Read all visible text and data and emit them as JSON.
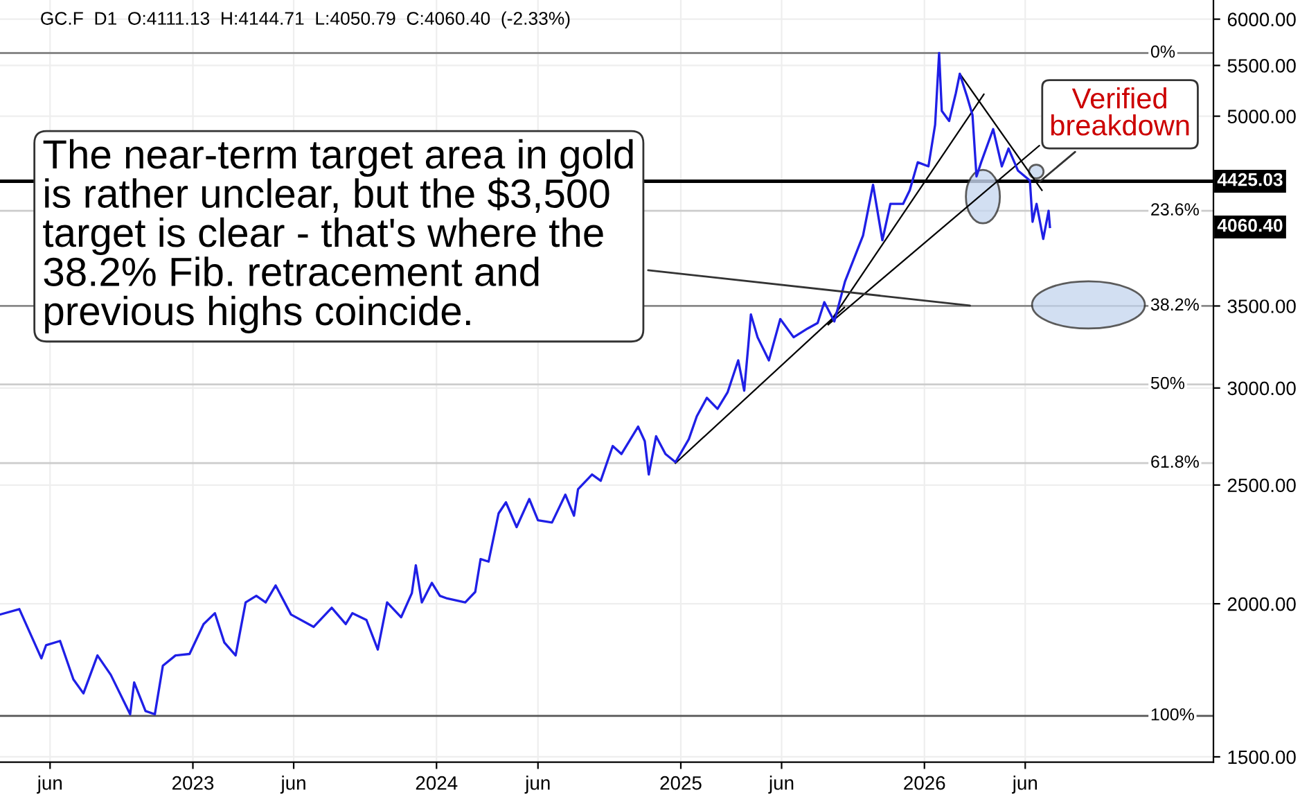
{
  "chart_data": {
    "type": "line",
    "title": "GC.F  D1  O:4111.13  H:4144.71  L:4050.79  C:4060.40  (-2.33%)",
    "log": true,
    "grid": true,
    "marker": "none",
    "line_style": "solid",
    "xlim": [
      "2022-03-18",
      "2027-03-10"
    ],
    "xticks": [
      {
        "value": "2022-06-01",
        "label": "jun"
      },
      {
        "value": "2023-01-01",
        "label": "2023"
      },
      {
        "value": "2023-06-01",
        "label": "jun"
      },
      {
        "value": "2024-01-01",
        "label": "2024"
      },
      {
        "value": "2024-06-01",
        "label": "jun"
      },
      {
        "value": "2025-01-01",
        "label": "2025"
      },
      {
        "value": "2025-06-01",
        "label": "jun"
      },
      {
        "value": "2026-01-01",
        "label": "2026"
      },
      {
        "value": "2026-06-01",
        "label": "jun"
      }
    ],
    "ylim": [
      1485,
      6220
    ],
    "yticks": [
      {
        "value": 1500,
        "label": "1500.00"
      },
      {
        "value": 2000,
        "label": "2000.00"
      },
      {
        "value": 2500,
        "label": "2500.00"
      },
      {
        "value": 3000,
        "label": "3000.00"
      },
      {
        "value": 3500,
        "label": "3500.00"
      },
      {
        "value": 5000,
        "label": "5000.00"
      },
      {
        "value": 5500,
        "label": "5500.00"
      },
      {
        "value": 6000,
        "label": "6000.00"
      }
    ],
    "series": [
      {
        "color": "#1f1fe6",
        "x": [
          "2022-03-18",
          "2022-04-16",
          "2022-05-19",
          "2022-05-26",
          "2022-06-16",
          "2022-07-06",
          "2022-07-21",
          "2022-08-11",
          "2022-08-31",
          "2022-09-29",
          "2022-10-05",
          "2022-10-22",
          "2022-11-05",
          "2022-11-17",
          "2022-12-06",
          "2022-12-27",
          "2023-01-17",
          "2023-02-03",
          "2023-02-17",
          "2023-03-06",
          "2023-03-21",
          "2023-04-06",
          "2023-04-20",
          "2023-05-05",
          "2023-05-28",
          "2023-07-01",
          "2023-07-28",
          "2023-08-18",
          "2023-08-28",
          "2023-09-18",
          "2023-10-05",
          "2023-10-19",
          "2023-11-09",
          "2023-11-25",
          "2023-12-01",
          "2023-12-10",
          "2023-12-25",
          "2024-01-06",
          "2024-01-17",
          "2024-02-13",
          "2024-02-28",
          "2024-03-07",
          "2024-03-19",
          "2024-04-03",
          "2024-04-14",
          "2024-04-30",
          "2024-05-19",
          "2024-06-01",
          "2024-06-22",
          "2024-07-12",
          "2024-07-25",
          "2024-07-31",
          "2024-08-21",
          "2024-09-03",
          "2024-09-21",
          "2024-10-04",
          "2024-10-29",
          "2024-11-08",
          "2024-11-14",
          "2024-11-25",
          "2024-12-09",
          "2024-12-24",
          "2025-01-13",
          "2025-01-25",
          "2025-02-09",
          "2025-02-25",
          "2025-03-12",
          "2025-03-28",
          "2025-04-06",
          "2025-04-12",
          "2025-04-16",
          "2025-04-26",
          "2025-05-13",
          "2025-05-30",
          "2025-06-19",
          "2025-07-10",
          "2025-07-25",
          "2025-08-04",
          "2025-08-19",
          "2025-09-04",
          "2025-10-01",
          "2025-10-16",
          "2025-10-30",
          "2025-11-11",
          "2025-11-30",
          "2025-12-10",
          "2025-12-22",
          "2026-01-07",
          "2026-01-17",
          "2026-01-23",
          "2026-01-27",
          "2026-02-07",
          "2026-02-17",
          "2026-02-23",
          "2026-03-06",
          "2026-03-14",
          "2026-03-20",
          "2026-03-27",
          "2026-04-14",
          "2026-04-27",
          "2026-05-07",
          "2026-05-21",
          "2026-06-08",
          "2026-06-12",
          "2026-06-18",
          "2026-06-28",
          "2026-07-06",
          "2026-07-08"
        ],
        "values": [
          1960,
          1980,
          1805,
          1850,
          1865,
          1735,
          1690,
          1815,
          1750,
          1625,
          1725,
          1635,
          1625,
          1780,
          1815,
          1820,
          1925,
          1965,
          1860,
          1815,
          2005,
          2030,
          2005,
          2070,
          1960,
          1915,
          1985,
          1925,
          1965,
          1940,
          1835,
          2005,
          1950,
          2040,
          2150,
          2005,
          2080,
          2030,
          2020,
          2005,
          2045,
          2175,
          2165,
          2370,
          2420,
          2310,
          2435,
          2340,
          2330,
          2455,
          2360,
          2480,
          2550,
          2520,
          2690,
          2650,
          2790,
          2715,
          2550,
          2740,
          2650,
          2610,
          2725,
          2845,
          2945,
          2885,
          2975,
          3160,
          2985,
          3245,
          3445,
          3300,
          3160,
          3415,
          3300,
          3355,
          3390,
          3525,
          3400,
          3665,
          3995,
          4395,
          3960,
          4240,
          4240,
          4350,
          4585,
          4550,
          4920,
          5630,
          5050,
          4955,
          5220,
          5415,
          5185,
          5010,
          4465,
          4585,
          4880,
          4550,
          4705,
          4515,
          4430,
          4100,
          4240,
          3970,
          4185,
          4060.4
        ]
      },
      {
        "color": "#000000",
        "x": [
          "2024-12-24",
          "2025-09-03"
        ],
        "values": [
          2605,
          3490
        ]
      },
      {
        "color": "#000000",
        "x": [
          "2025-08-10",
          "2026-03-31"
        ],
        "values": [
          3380,
          5210
        ]
      },
      {
        "color": "#000000",
        "x": [
          "2025-08-10",
          "2026-06-22"
        ],
        "values": [
          3380,
          4730
        ]
      },
      {
        "color": "#000000",
        "x": [
          "2026-02-23",
          "2026-06-26"
        ],
        "values": [
          5415,
          4350
        ]
      }
    ],
    "ref_lines": [
      {
        "axis": "y",
        "value": 5630,
        "color": "#888888"
      },
      {
        "axis": "y",
        "value": 4185,
        "color": "#cccccc"
      },
      {
        "axis": "y",
        "value": 3500,
        "color": "#888888"
      },
      {
        "axis": "y",
        "value": 3020,
        "color": "#cccccc"
      },
      {
        "axis": "y",
        "value": 2605,
        "color": "#cccccc"
      },
      {
        "axis": "y",
        "value": 1620,
        "color": "#555555"
      },
      {
        "axis": "y",
        "value": 4425.03,
        "label": "4425.03",
        "color": "#000000"
      }
    ],
    "annotations": [
      {
        "text": "The near-term target area in gold\nis rather unclear, but the $3,500\ntarget is clear - that's where the\n38.2% Fib. retracement and\nprevious highs coincide.",
        "x": "2026-03-16",
        "y": 3500
      },
      {
        "text": "Verified\nbreakdown",
        "x": "2026-06-18",
        "y": 4400
      },
      "4060.40",
      {
        "text": "0%",
        "y": 5630
      },
      {
        "text": "23.6%",
        "y": 4185
      },
      {
        "text": "38.2%",
        "y": 3500
      },
      {
        "text": "50%",
        "y": 3020
      },
      {
        "text": "61.8%",
        "y": 2605
      },
      {
        "text": "100%",
        "y": 1620
      }
    ]
  }
}
